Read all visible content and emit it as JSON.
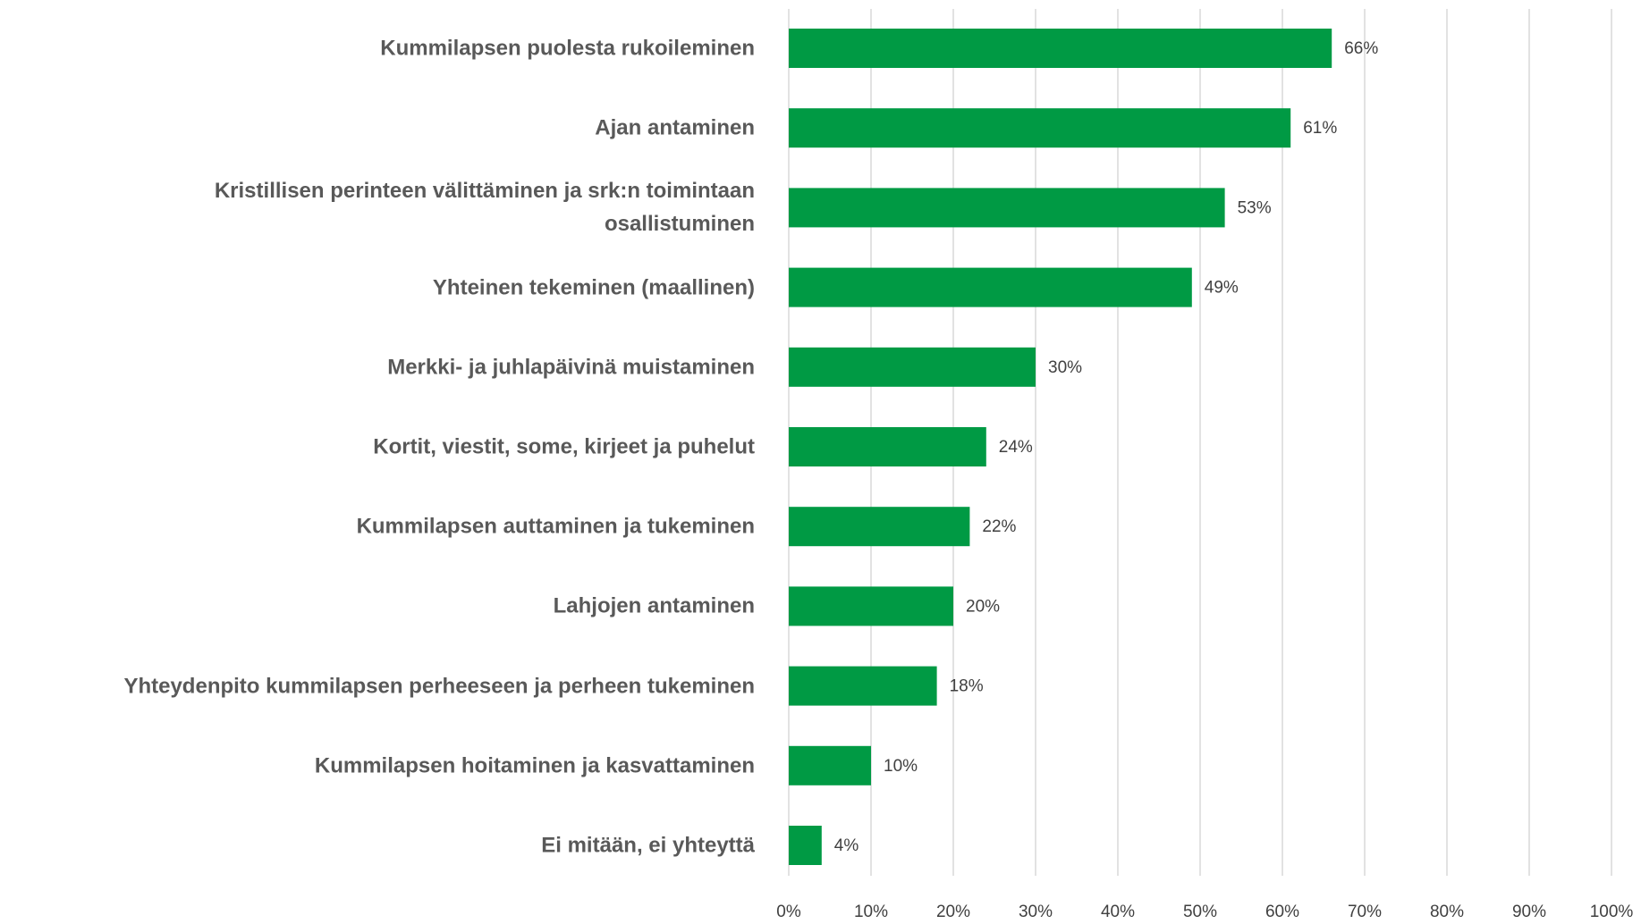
{
  "chart_data": {
    "type": "hbar",
    "categories": [
      "Kummilapsen puolesta rukoileminen",
      "Ajan antaminen",
      "Kristillisen perinteen välittäminen ja srk:n toimintaan\nosallistuminen",
      "Yhteinen tekeminen (maallinen)",
      "Merkki- ja juhlapäivinä muistaminen",
      "Kortit, viestit, some, kirjeet ja puhelut",
      "Kummilapsen auttaminen ja tukeminen",
      "Lahjojen antaminen",
      "Yhteydenpito kummilapsen perheeseen ja perheen tukeminen",
      "Kummilapsen hoitaminen ja kasvattaminen",
      "Ei mitään, ei yhteyttä"
    ],
    "values": [
      66,
      61,
      53,
      49,
      30,
      24,
      22,
      20,
      18,
      10,
      4
    ],
    "value_labels": [
      "66%",
      "61%",
      "53%",
      "49%",
      "30%",
      "24%",
      "22%",
      "20%",
      "18%",
      "10%",
      "4%"
    ],
    "color": "#009a44",
    "xlim": [
      0,
      100
    ],
    "xticks": [
      {
        "value": 0,
        "label": "0%"
      },
      {
        "value": 10,
        "label": "10%"
      },
      {
        "value": 20,
        "label": "20%"
      },
      {
        "value": 30,
        "label": "30%"
      },
      {
        "value": 40,
        "label": "40%"
      },
      {
        "value": 50,
        "label": "50%"
      },
      {
        "value": 60,
        "label": "60%"
      },
      {
        "value": 70,
        "label": "70%"
      },
      {
        "value": 80,
        "label": "80%"
      },
      {
        "value": 90,
        "label": "90%"
      },
      {
        "value": 100,
        "label": "100%"
      }
    ],
    "grid": true
  }
}
